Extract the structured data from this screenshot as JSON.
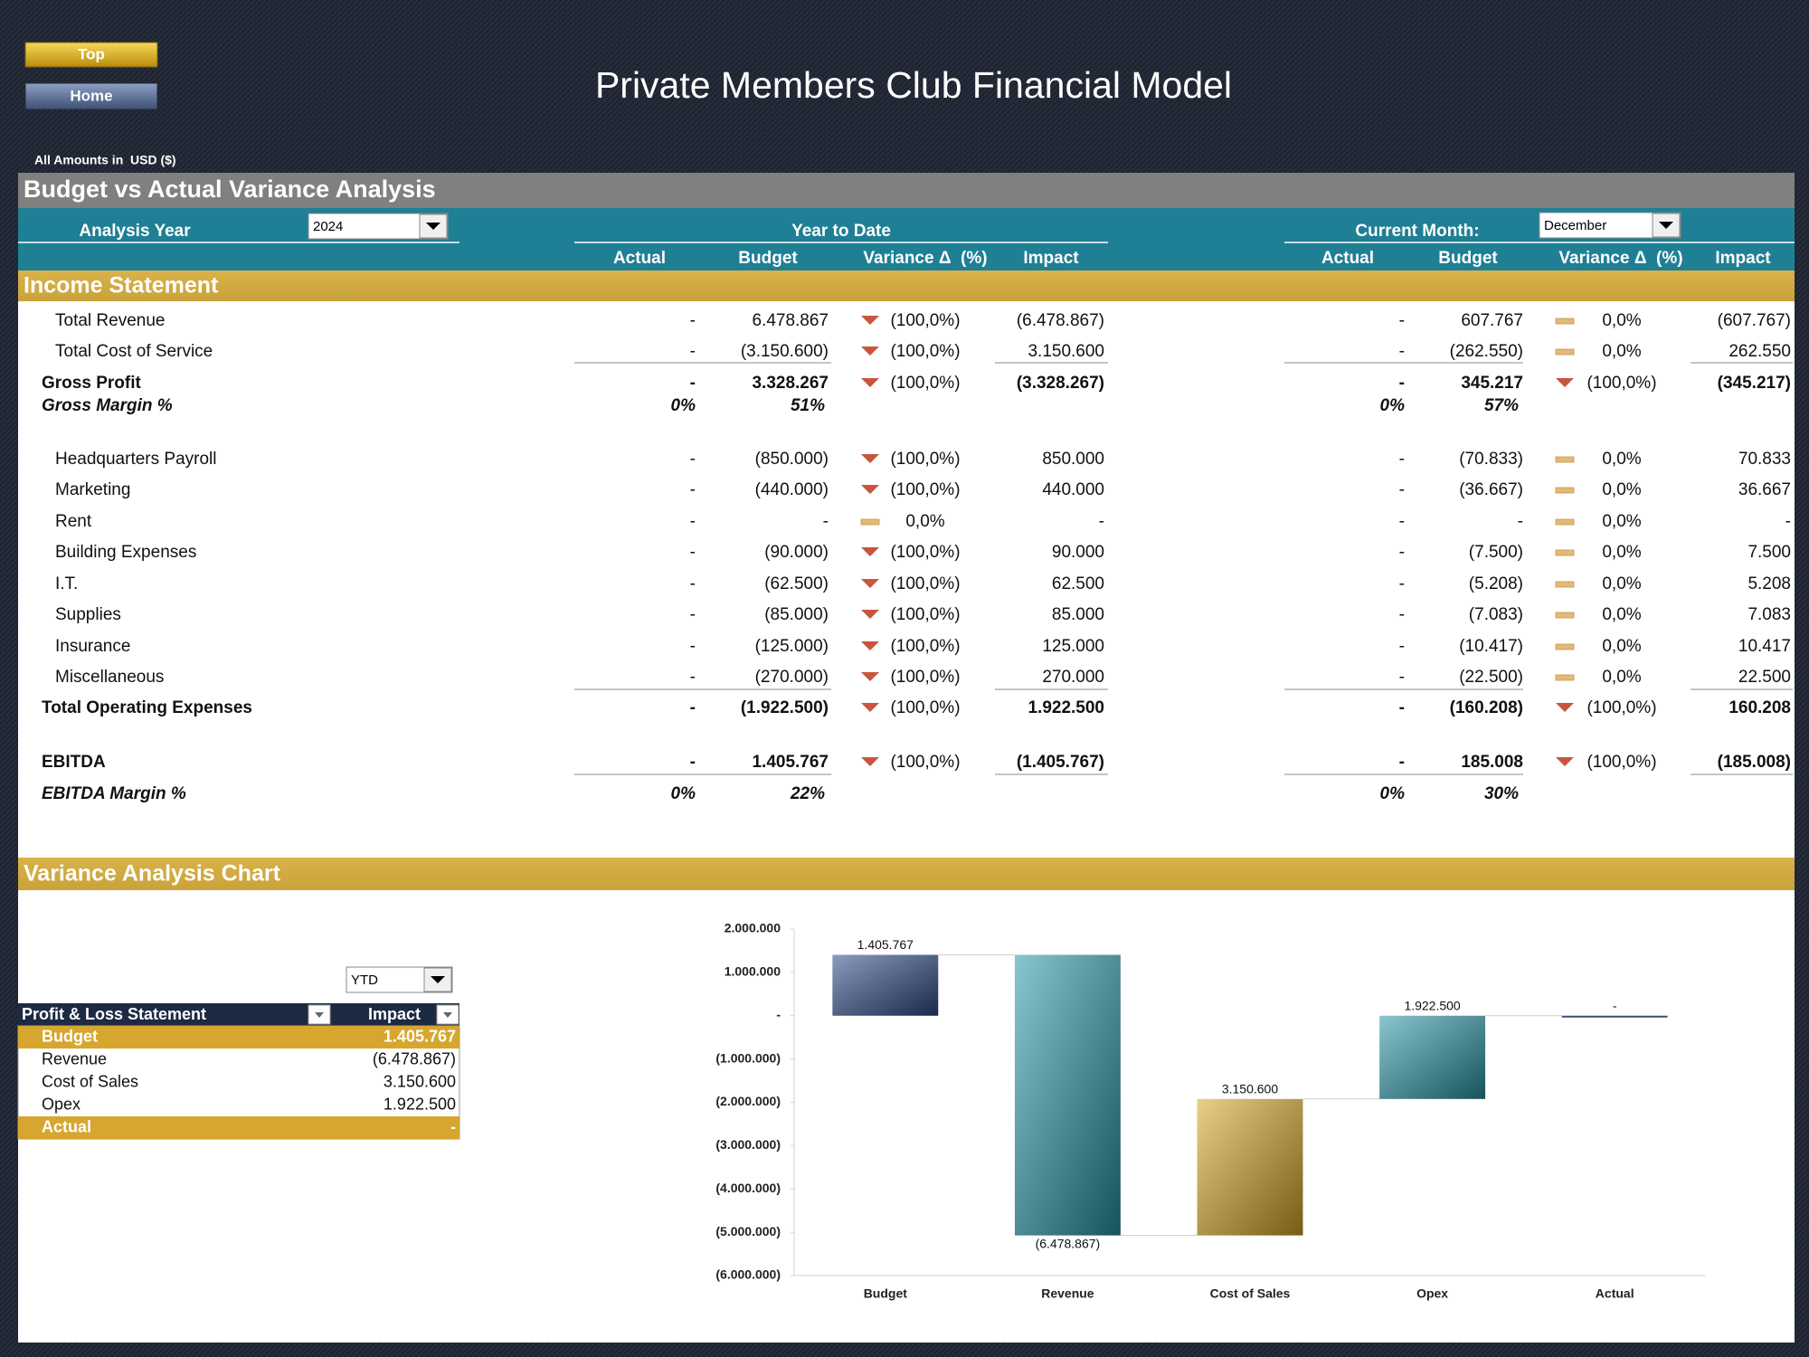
{
  "buttons": [
    "Top",
    "Home"
  ],
  "title": "Private Members Club Financial Model",
  "amounts_note": "All Amounts in  USD ($)",
  "section_title": "Budget vs Actual Variance Analysis",
  "analysis_year_label": "Analysis Year",
  "analysis_year": "2024",
  "ytd_label": "Year to Date",
  "month_label": "Current Month:",
  "month": "December",
  "columns": [
    "Actual",
    "Budget",
    "Variance Δ  (%)",
    "Impact"
  ],
  "income_statement": {
    "title": "Income Statement",
    "rows": [
      {
        "label": "Total Revenue",
        "style": "item",
        "ytd": [
          "-",
          "6.478.867",
          "(100,0%)",
          "(6.478.867)"
        ],
        "ytd_icon": "down",
        "month": [
          "-",
          "607.767",
          "0,0%",
          "(607.767)"
        ],
        "month_icon": "flat"
      },
      {
        "label": "Total Cost of Service",
        "style": "item",
        "ytd": [
          "-",
          "(3.150.600)",
          "(100,0%)",
          "3.150.600"
        ],
        "ytd_icon": "down",
        "month": [
          "-",
          "(262.550)",
          "0,0%",
          "262.550"
        ],
        "month_icon": "flat"
      },
      {
        "label": "Gross Profit",
        "style": "total",
        "ytd": [
          "-",
          "3.328.267",
          "(100,0%)",
          "(3.328.267)"
        ],
        "ytd_icon": "down",
        "month": [
          "-",
          "345.217",
          "(100,0%)",
          "(345.217)"
        ],
        "month_icon": "down"
      },
      {
        "label": "Gross Margin %",
        "style": "margin",
        "ytd": [
          "0%",
          "51%"
        ],
        "month": [
          "0%",
          "57%"
        ]
      },
      {
        "label": "Headquarters Payroll",
        "style": "item",
        "ytd": [
          "-",
          "(850.000)",
          "(100,0%)",
          "850.000"
        ],
        "ytd_icon": "down",
        "month": [
          "-",
          "(70.833)",
          "0,0%",
          "70.833"
        ],
        "month_icon": "flat"
      },
      {
        "label": "Marketing",
        "style": "item",
        "ytd": [
          "-",
          "(440.000)",
          "(100,0%)",
          "440.000"
        ],
        "ytd_icon": "down",
        "month": [
          "-",
          "(36.667)",
          "0,0%",
          "36.667"
        ],
        "month_icon": "flat"
      },
      {
        "label": "Rent",
        "style": "item",
        "ytd": [
          "-",
          "-",
          "0,0%",
          "-"
        ],
        "ytd_icon": "flat",
        "month": [
          "-",
          "-",
          "0,0%",
          "-"
        ],
        "month_icon": "flat"
      },
      {
        "label": "Building Expenses",
        "style": "item",
        "ytd": [
          "-",
          "(90.000)",
          "(100,0%)",
          "90.000"
        ],
        "ytd_icon": "down",
        "month": [
          "-",
          "(7.500)",
          "0,0%",
          "7.500"
        ],
        "month_icon": "flat"
      },
      {
        "label": "I.T.",
        "style": "item",
        "ytd": [
          "-",
          "(62.500)",
          "(100,0%)",
          "62.500"
        ],
        "ytd_icon": "down",
        "month": [
          "-",
          "(5.208)",
          "0,0%",
          "5.208"
        ],
        "month_icon": "flat"
      },
      {
        "label": "Supplies",
        "style": "item",
        "ytd": [
          "-",
          "(85.000)",
          "(100,0%)",
          "85.000"
        ],
        "ytd_icon": "down",
        "month": [
          "-",
          "(7.083)",
          "0,0%",
          "7.083"
        ],
        "month_icon": "flat"
      },
      {
        "label": "Insurance",
        "style": "item",
        "ytd": [
          "-",
          "(125.000)",
          "(100,0%)",
          "125.000"
        ],
        "ytd_icon": "down",
        "month": [
          "-",
          "(10.417)",
          "0,0%",
          "10.417"
        ],
        "month_icon": "flat"
      },
      {
        "label": "Miscellaneous",
        "style": "item",
        "ytd": [
          "-",
          "(270.000)",
          "(100,0%)",
          "270.000"
        ],
        "ytd_icon": "down",
        "month": [
          "-",
          "(22.500)",
          "0,0%",
          "22.500"
        ],
        "month_icon": "flat"
      },
      {
        "label": "Total Operating Expenses",
        "style": "total",
        "ytd": [
          "-",
          "(1.922.500)",
          "(100,0%)",
          "1.922.500"
        ],
        "ytd_icon": "down",
        "month": [
          "-",
          "(160.208)",
          "(100,0%)",
          "160.208"
        ],
        "month_icon": "down"
      },
      {
        "label": "EBITDA",
        "style": "total",
        "ytd": [
          "-",
          "1.405.767",
          "(100,0%)",
          "(1.405.767)"
        ],
        "ytd_icon": "down",
        "month": [
          "-",
          "185.008",
          "(100,0%)",
          "(185.008)"
        ],
        "month_icon": "down"
      },
      {
        "label": "EBITDA Margin %",
        "style": "margin",
        "ytd": [
          "0%",
          "22%"
        ],
        "month": [
          "0%",
          "30%"
        ]
      }
    ]
  },
  "chart_section_title": "Variance Analysis Chart",
  "pl_table": {
    "filter": "YTD",
    "headers": [
      "Profit & Loss Statement",
      "Impact"
    ],
    "rows": [
      [
        "Budget",
        "1.405.767"
      ],
      [
        "Revenue",
        "(6.478.867)"
      ],
      [
        "Cost of Sales",
        "3.150.600"
      ],
      [
        "Opex",
        "1.922.500"
      ],
      [
        "Actual",
        "-"
      ]
    ]
  },
  "chart_data": {
    "type": "waterfall",
    "categories": [
      "Budget",
      "Revenue",
      "Cost of Sales",
      "Opex",
      "Actual"
    ],
    "values": [
      1405767,
      -6478867,
      3150600,
      1922500,
      0
    ],
    "value_labels": [
      "1.405.767",
      "(6.478.867)",
      "3.150.600",
      "1.922.500",
      "-"
    ],
    "colors": [
      "#2c4a86",
      "#2a97a8",
      "#d9a824",
      "#2a97a8",
      "#3a4f7a"
    ],
    "ylim": [
      -6000000,
      2000000
    ],
    "yticks": [
      {
        "value": -6000000,
        "label": "(6.000.000)"
      },
      {
        "value": -5000000,
        "label": "(5.000.000)"
      },
      {
        "value": -4000000,
        "label": "(4.000.000)"
      },
      {
        "value": -3000000,
        "label": "(3.000.000)"
      },
      {
        "value": -2000000,
        "label": "(2.000.000)"
      },
      {
        "value": -1000000,
        "label": "(1.000.000)"
      },
      {
        "value": 0,
        "label": "-"
      },
      {
        "value": 1000000,
        "label": "1.000.000"
      },
      {
        "value": 2000000,
        "label": "2.000.000"
      }
    ]
  }
}
